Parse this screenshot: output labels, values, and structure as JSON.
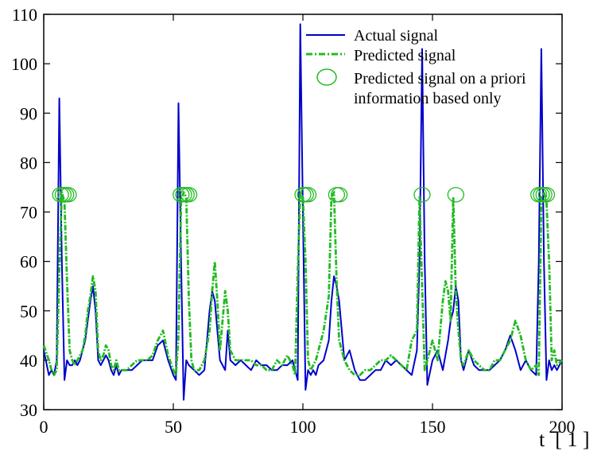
{
  "chart_data": {
    "type": "line",
    "xlabel": "t  [ 1 ]",
    "ylabel": "",
    "title": "",
    "xlim": [
      0,
      200
    ],
    "ylim": [
      30,
      110
    ],
    "x_ticks": [
      0,
      50,
      100,
      150,
      200
    ],
    "y_ticks": [
      30,
      40,
      50,
      60,
      70,
      80,
      90,
      100,
      110
    ],
    "grid": false,
    "legend_position": "top-right",
    "series": [
      {
        "name": "Actual signal",
        "style": "solid",
        "color": "#0000cc",
        "x": [
          0,
          2,
          3,
          4,
          5,
          6,
          7,
          8,
          9,
          10,
          11,
          12,
          13,
          14,
          15,
          16,
          17,
          18,
          19,
          20,
          21,
          22,
          23,
          24,
          25,
          26,
          27,
          28,
          29,
          30,
          32,
          34,
          36,
          38,
          40,
          42,
          44,
          46,
          48,
          50,
          51,
          52,
          53,
          54,
          55,
          56,
          58,
          60,
          62,
          64,
          65,
          66,
          67,
          68,
          70,
          71,
          72,
          74,
          76,
          78,
          80,
          82,
          84,
          86,
          88,
          90,
          92,
          94,
          96,
          97,
          98,
          99,
          100,
          101,
          102,
          103,
          104,
          105,
          106,
          108,
          110,
          111,
          112,
          113,
          114,
          116,
          118,
          120,
          122,
          124,
          126,
          128,
          130,
          132,
          134,
          136,
          138,
          140,
          142,
          144,
          145,
          146,
          147,
          148,
          150,
          152,
          154,
          156,
          157,
          158,
          159,
          160,
          161,
          162,
          164,
          166,
          168,
          170,
          172,
          174,
          176,
          178,
          180,
          182,
          184,
          186,
          188,
          190,
          191,
          192,
          193,
          194,
          195,
          196,
          197,
          198,
          200
        ],
        "y": [
          42,
          37,
          38,
          37,
          40,
          93,
          60,
          36,
          40,
          39,
          39,
          40,
          39,
          40,
          42,
          44,
          48,
          52,
          55,
          50,
          40,
          39,
          40,
          41,
          40,
          38,
          37,
          39,
          37,
          38,
          38,
          38,
          39,
          40,
          40,
          40,
          43,
          44,
          40,
          37,
          36,
          92,
          60,
          32,
          40,
          39,
          38,
          37,
          38,
          50,
          54,
          52,
          46,
          40,
          38,
          46,
          40,
          39,
          40,
          39,
          38,
          40,
          39,
          39,
          38,
          38,
          39,
          39,
          40,
          38,
          36,
          108,
          70,
          34,
          38,
          37,
          38,
          37,
          39,
          40,
          44,
          52,
          57,
          55,
          52,
          40,
          42,
          38,
          36,
          36,
          37,
          38,
          38,
          40,
          39,
          40,
          39,
          38,
          37,
          42,
          60,
          103,
          60,
          35,
          40,
          42,
          38,
          44,
          48,
          50,
          55,
          52,
          40,
          38,
          42,
          39,
          38,
          38,
          38,
          39,
          40,
          42,
          45,
          42,
          38,
          40,
          38,
          37,
          60,
          103,
          60,
          36,
          40,
          38,
          39,
          38,
          40
        ]
      },
      {
        "name": "Predicted signal",
        "style": "dash-dot",
        "color": "#22bb22",
        "x": [
          0,
          2,
          3,
          4,
          5,
          6,
          7,
          8,
          9,
          10,
          11,
          12,
          13,
          14,
          15,
          16,
          17,
          18,
          19,
          20,
          21,
          22,
          23,
          24,
          25,
          26,
          27,
          28,
          29,
          30,
          32,
          34,
          36,
          38,
          40,
          42,
          44,
          46,
          48,
          50,
          51,
          52,
          53,
          54,
          55,
          56,
          57,
          58,
          60,
          62,
          64,
          65,
          66,
          67,
          68,
          70,
          71,
          72,
          74,
          76,
          78,
          80,
          82,
          84,
          86,
          88,
          90,
          92,
          94,
          96,
          97,
          98,
          99,
          100,
          101,
          102,
          103,
          104,
          105,
          106,
          108,
          110,
          111,
          112,
          113,
          114,
          116,
          118,
          120,
          122,
          124,
          126,
          128,
          130,
          132,
          134,
          136,
          138,
          140,
          142,
          144,
          145,
          146,
          147,
          148,
          150,
          152,
          154,
          155,
          156,
          157,
          158,
          159,
          160,
          161,
          162,
          164,
          166,
          168,
          170,
          172,
          174,
          176,
          178,
          180,
          182,
          184,
          186,
          188,
          190,
          191,
          192,
          193,
          194,
          195,
          196,
          197,
          198,
          200
        ],
        "y": [
          43,
          40,
          38,
          37,
          38,
          58,
          74,
          72,
          56,
          42,
          40,
          39,
          40,
          41,
          42,
          45,
          50,
          53,
          57,
          54,
          42,
          40,
          41,
          43,
          42,
          39,
          38,
          40,
          38,
          38,
          38,
          39,
          40,
          40,
          40,
          41,
          44,
          46,
          41,
          38,
          37,
          45,
          72,
          74,
          73,
          52,
          40,
          38,
          38,
          40,
          46,
          54,
          60,
          52,
          42,
          54,
          50,
          42,
          40,
          40,
          40,
          40,
          39,
          39,
          38,
          38,
          40,
          39,
          41,
          39,
          37,
          58,
          74,
          73,
          60,
          40,
          38,
          39,
          40,
          42,
          46,
          53,
          73,
          74,
          56,
          44,
          40,
          38,
          37,
          37,
          38,
          38,
          39,
          40,
          40,
          41,
          40,
          39,
          38,
          44,
          46,
          73,
          55,
          38,
          40,
          44,
          40,
          52,
          56,
          54,
          48,
          73,
          54,
          46,
          40,
          39,
          42,
          40,
          39,
          38,
          38,
          40,
          40,
          42,
          44,
          48,
          45,
          40,
          38,
          39,
          37,
          73,
          74,
          72,
          60,
          40,
          42,
          39,
          40
        ]
      },
      {
        "name": "Predicted signal on a priori information based only",
        "style": "circle-markers",
        "color": "#22bb22",
        "x": [
          6.5,
          7.5,
          8.5,
          9.5,
          53,
          54,
          55,
          56,
          100,
          101,
          102,
          113,
          114,
          146,
          159,
          191,
          192,
          193,
          194
        ],
        "y": [
          73.5,
          73.5,
          73.5,
          73.5,
          73.5,
          73.5,
          73.5,
          73.5,
          73.5,
          73.5,
          73.5,
          73.5,
          73.5,
          73.5,
          73.5,
          73.5,
          73.5,
          73.5,
          73.5
        ]
      }
    ],
    "legend_lines": {
      "actual": "Actual signal",
      "predicted": "Predicted signal",
      "apriori_1": "Predicted signal on a priori",
      "apriori_2": "information based only"
    }
  }
}
